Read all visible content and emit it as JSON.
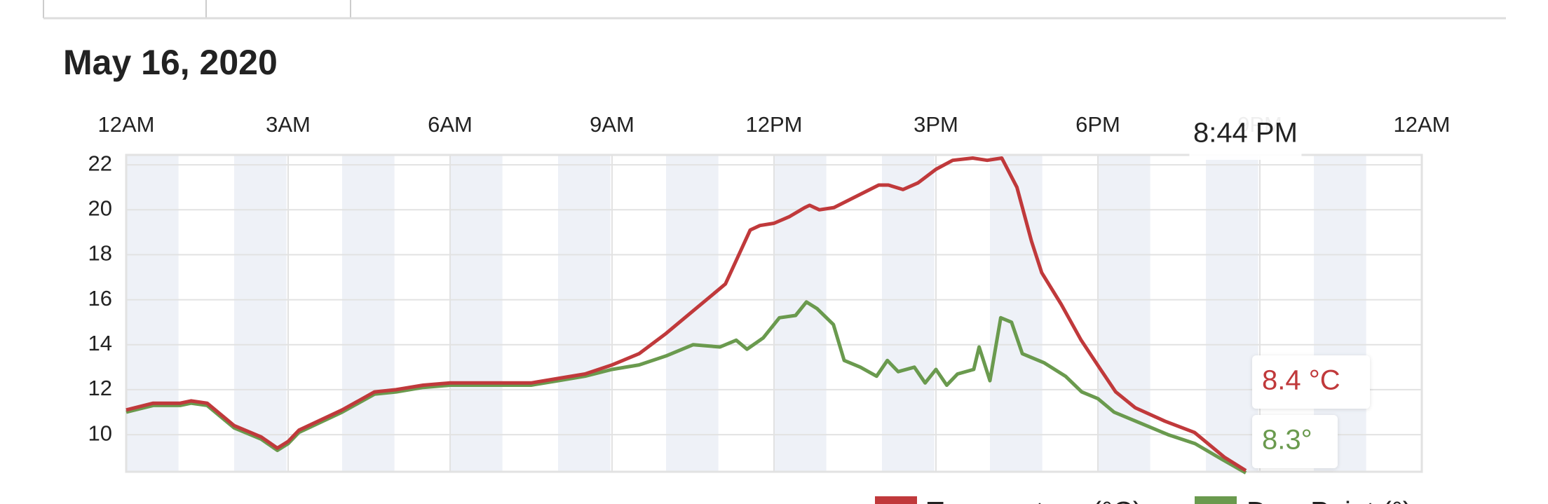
{
  "chart_data": {
    "type": "line",
    "title": "May 16, 2020",
    "xlim": [
      0,
      24
    ],
    "xticks": [
      {
        "value": 0,
        "label": "12AM"
      },
      {
        "value": 3,
        "label": "3AM"
      },
      {
        "value": 6,
        "label": "6AM"
      },
      {
        "value": 9,
        "label": "9AM"
      },
      {
        "value": 12,
        "label": "12PM"
      },
      {
        "value": 15,
        "label": "3PM"
      },
      {
        "value": 18,
        "label": "6PM"
      },
      {
        "value": 21,
        "label": "9PM"
      },
      {
        "value": 24,
        "label": "12AM"
      }
    ],
    "ylim": [
      8.35,
      22.44
    ],
    "yticks": [
      10,
      12,
      14,
      16,
      18,
      20,
      22
    ],
    "grid": true,
    "cursor": {
      "x": 20.733,
      "label": "8:44 PM"
    },
    "series": [
      {
        "name": "Temperature (°C)",
        "color": "#c0393b",
        "x": [
          0,
          0.5,
          1,
          1.2,
          1.5,
          2,
          2.5,
          2.8,
          3,
          3.2,
          4,
          4.6,
          5,
          5.5,
          6,
          7,
          7.5,
          8,
          8.5,
          9,
          9.5,
          10,
          10.5,
          11.1,
          11.56,
          11.74,
          12,
          12.29,
          12.57,
          12.66,
          12.84,
          13.11,
          13.94,
          14.12,
          14.39,
          14.67,
          15,
          15.31,
          15.68,
          15.95,
          16.22,
          16.5,
          16.77,
          16.96,
          17.32,
          17.69,
          18.05,
          18.33,
          18.69,
          19.24,
          19.79,
          20.34,
          20.74
        ],
        "values": [
          11.1,
          11.4,
          11.4,
          11.5,
          11.4,
          10.4,
          9.9,
          9.4,
          9.7,
          10.2,
          11.1,
          11.9,
          12.0,
          12.2,
          12.3,
          12.3,
          12.3,
          12.5,
          12.7,
          13.1,
          13.6,
          14.5,
          15.5,
          16.7,
          19.1,
          19.3,
          19.4,
          19.7,
          20.1,
          20.2,
          20.0,
          20.1,
          21.1,
          21.1,
          20.9,
          21.2,
          21.8,
          22.2,
          22.3,
          22.2,
          22.3,
          21.0,
          18.6,
          17.2,
          15.8,
          14.2,
          12.9,
          11.9,
          11.2,
          10.6,
          10.1,
          9.0,
          8.4
        ],
        "value_labels": {
          "20": "8.4 °C"
        }
      },
      {
        "name": "Dew Point (°)",
        "color": "#6a9a4e",
        "x": [
          0,
          0.5,
          1,
          1.2,
          1.5,
          2,
          2.5,
          2.8,
          3,
          3.2,
          4,
          4.6,
          5,
          5.5,
          6,
          7,
          7.5,
          8,
          8.5,
          9,
          9.5,
          10,
          10.3,
          10.5,
          11,
          11.3,
          11.5,
          11.8,
          12.1,
          12.4,
          12.6,
          12.8,
          13.1,
          13.3,
          13.6,
          13.9,
          14.1,
          14.3,
          14.6,
          14.8,
          15.0,
          15.2,
          15.4,
          15.7,
          15.8,
          16.0,
          16.2,
          16.4,
          16.6,
          17.0,
          17.4,
          17.7,
          18.0,
          18.3,
          18.7,
          19.3,
          19.8,
          20.3,
          20.74
        ],
        "values": [
          11.0,
          11.3,
          11.3,
          11.4,
          11.3,
          10.3,
          9.8,
          9.3,
          9.6,
          10.1,
          11.0,
          11.8,
          11.9,
          12.1,
          12.2,
          12.2,
          12.2,
          12.4,
          12.6,
          12.9,
          13.1,
          13.5,
          13.8,
          14.0,
          13.9,
          14.2,
          13.8,
          14.3,
          15.2,
          15.3,
          15.9,
          15.6,
          14.9,
          13.3,
          13.0,
          12.6,
          13.3,
          12.8,
          13.0,
          12.3,
          12.9,
          12.2,
          12.7,
          12.9,
          13.9,
          12.4,
          15.2,
          15.0,
          13.6,
          13.2,
          12.6,
          11.9,
          11.6,
          11.0,
          10.6,
          10.0,
          9.6,
          8.9,
          8.3
        ]
      }
    ],
    "end_labels": [
      {
        "value": 8.4,
        "label": "8.4 °C"
      },
      {
        "value": 8.3,
        "label": "8.3°"
      }
    ]
  }
}
